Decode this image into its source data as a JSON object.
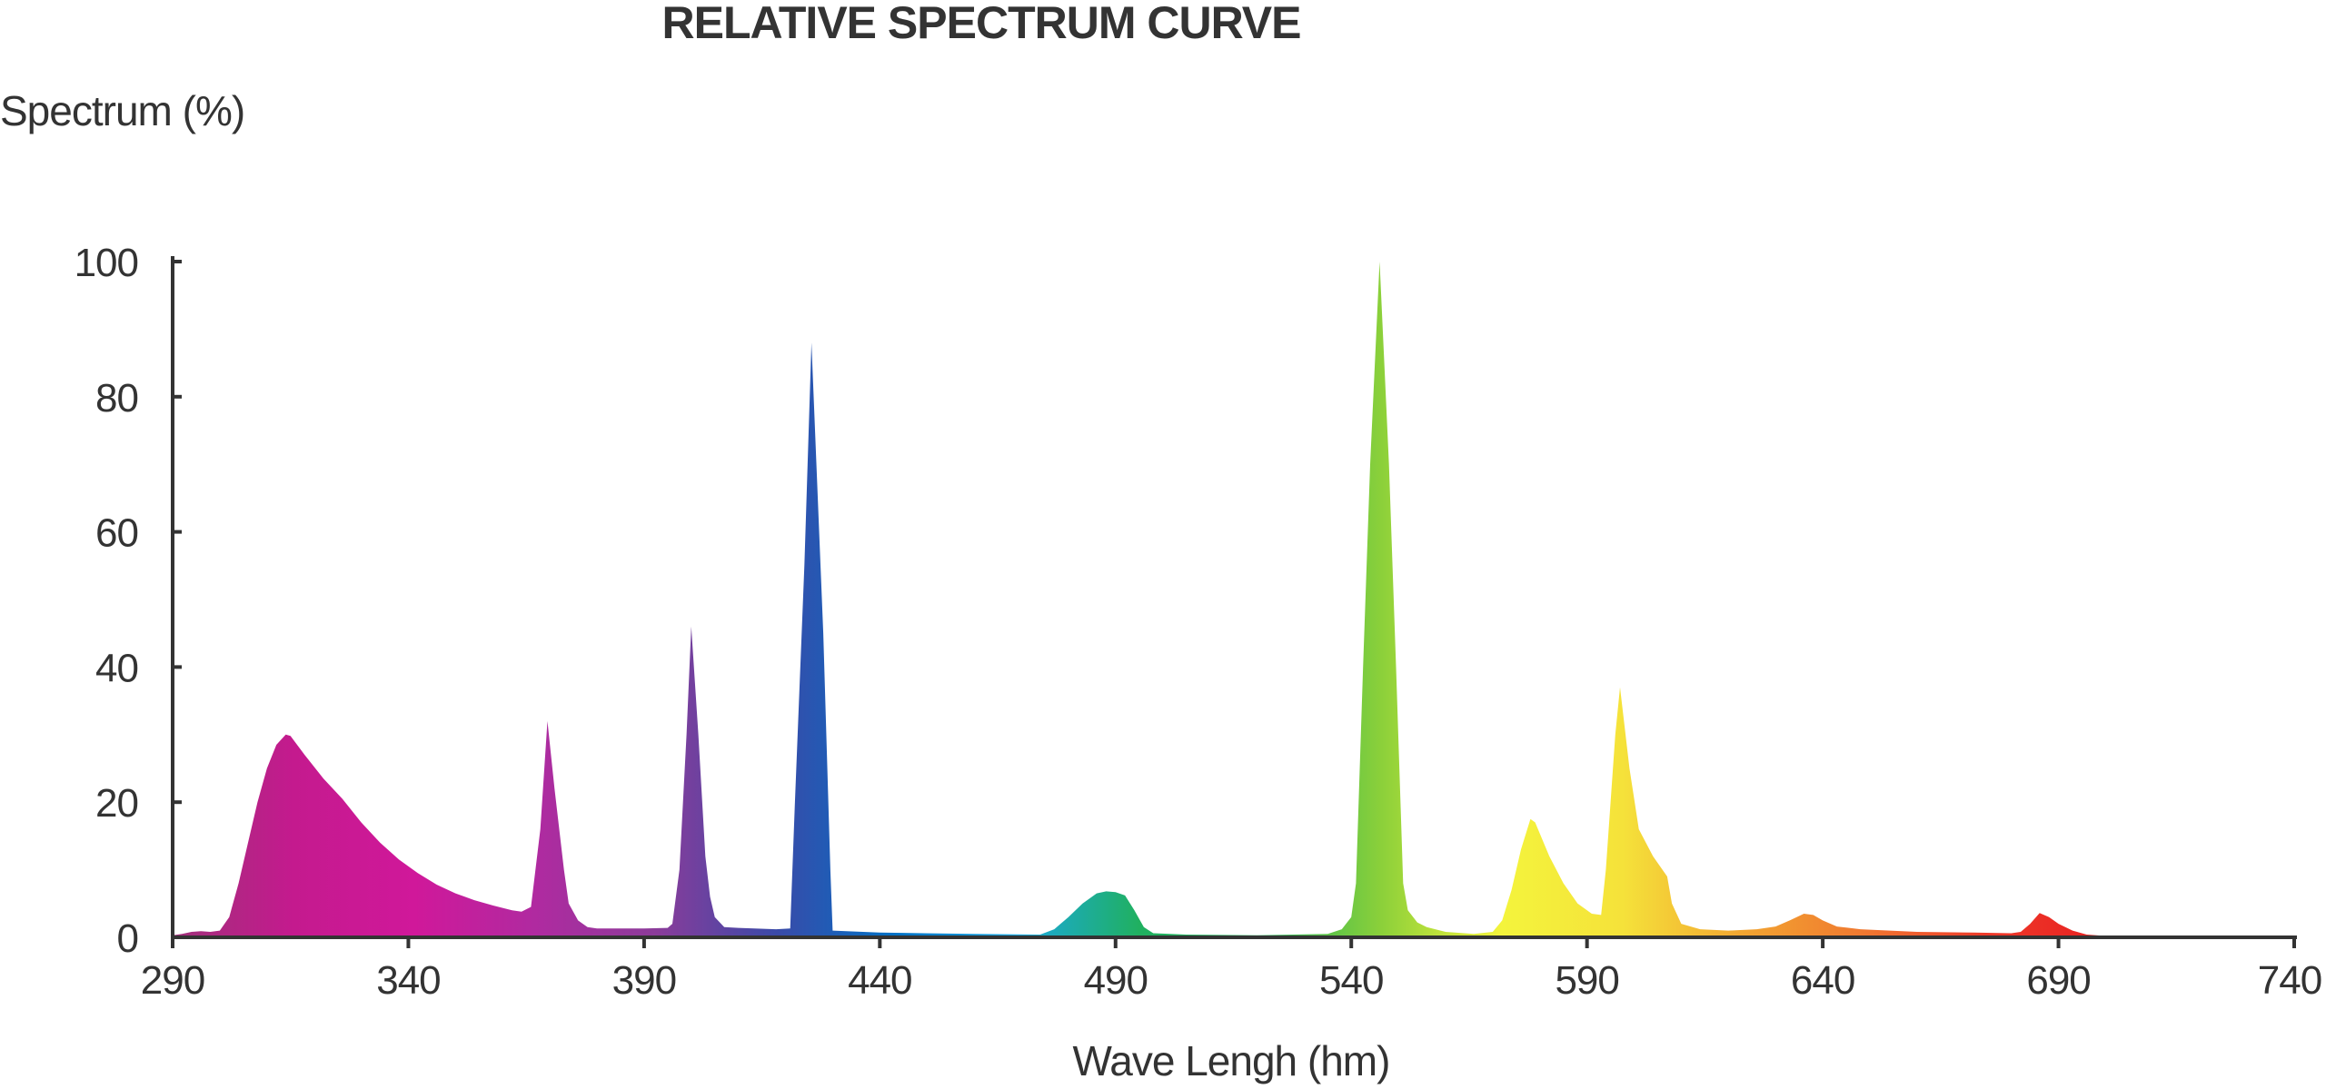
{
  "chart_data": {
    "type": "area",
    "title": "RELATIVE SPECTRUM CURVE",
    "ylabel": "Spectrum (%)",
    "xlabel": "Wave Lengh (hm)",
    "xlim": [
      290,
      740
    ],
    "ylim": [
      0,
      100
    ],
    "x_ticks": [
      290,
      340,
      390,
      440,
      490,
      540,
      590,
      640,
      690,
      740
    ],
    "y_ticks": [
      0,
      20,
      40,
      60,
      80,
      100
    ],
    "grid": false,
    "legend": "none",
    "gradient_colors": [
      "#a0307a",
      "#c41a8e",
      "#d0189a",
      "#b02aa0",
      "#8b3c9a",
      "#3a4aa8",
      "#0072c6",
      "#1aa8e0",
      "#20b060",
      "#22b35a",
      "#8bd03a",
      "#f4f43c",
      "#f5e23a",
      "#f2a531",
      "#f07830",
      "#ee3a2a",
      "#e82020"
    ],
    "series": [
      {
        "points": [
          [
            290,
            0.3
          ],
          [
            292,
            0.5
          ],
          [
            294,
            0.8
          ],
          [
            296,
            0.9
          ],
          [
            298,
            0.8
          ],
          [
            300,
            1.0
          ],
          [
            302,
            3
          ],
          [
            304,
            8
          ],
          [
            306,
            14
          ],
          [
            308,
            20
          ],
          [
            310,
            25
          ],
          [
            312,
            28.5
          ],
          [
            314,
            30
          ],
          [
            315,
            29.8
          ],
          [
            318,
            27
          ],
          [
            322,
            23.5
          ],
          [
            326,
            20.5
          ],
          [
            330,
            17
          ],
          [
            334,
            14
          ],
          [
            338,
            11.5
          ],
          [
            342,
            9.5
          ],
          [
            346,
            7.8
          ],
          [
            350,
            6.5
          ],
          [
            354,
            5.5
          ],
          [
            358,
            4.7
          ],
          [
            362,
            4.0
          ],
          [
            364,
            3.8
          ],
          [
            366,
            4.5
          ],
          [
            368,
            16
          ],
          [
            369.5,
            32
          ],
          [
            371,
            22
          ],
          [
            373,
            10
          ],
          [
            374,
            5
          ],
          [
            376,
            2.5
          ],
          [
            378,
            1.5
          ],
          [
            380,
            1.3
          ],
          [
            390,
            1.3
          ],
          [
            395,
            1.4
          ],
          [
            396,
            2
          ],
          [
            397.5,
            10
          ],
          [
            399,
            30
          ],
          [
            400,
            46
          ],
          [
            401.5,
            30
          ],
          [
            403,
            12
          ],
          [
            404,
            6
          ],
          [
            405,
            3
          ],
          [
            407,
            1.5
          ],
          [
            410,
            1.4
          ],
          [
            418,
            1.2
          ],
          [
            421,
            1.3
          ],
          [
            422,
            20
          ],
          [
            424,
            55
          ],
          [
            425.5,
            88
          ],
          [
            428,
            45
          ],
          [
            429.5,
            10
          ],
          [
            430,
            1
          ],
          [
            440,
            0.7
          ],
          [
            460,
            0.5
          ],
          [
            474,
            0.4
          ],
          [
            477,
            1.2
          ],
          [
            480,
            3
          ],
          [
            483,
            5
          ],
          [
            486,
            6.5
          ],
          [
            488,
            6.8
          ],
          [
            490,
            6.7
          ],
          [
            492,
            6.2
          ],
          [
            494,
            4
          ],
          [
            496,
            1.5
          ],
          [
            498,
            0.6
          ],
          [
            505,
            0.4
          ],
          [
            520,
            0.3
          ],
          [
            535,
            0.5
          ],
          [
            538,
            1.2
          ],
          [
            540,
            3
          ],
          [
            541,
            8
          ],
          [
            542.5,
            40
          ],
          [
            544,
            70
          ],
          [
            546,
            100
          ],
          [
            548,
            70
          ],
          [
            549.5,
            40
          ],
          [
            551,
            8
          ],
          [
            552,
            4
          ],
          [
            554,
            2.2
          ],
          [
            556,
            1.5
          ],
          [
            560,
            0.8
          ],
          [
            566,
            0.5
          ],
          [
            570,
            0.8
          ],
          [
            572,
            2.5
          ],
          [
            574,
            7
          ],
          [
            576,
            13
          ],
          [
            578,
            17.5
          ],
          [
            579,
            17
          ],
          [
            582,
            12
          ],
          [
            585,
            8
          ],
          [
            588,
            5
          ],
          [
            591,
            3.5
          ],
          [
            593,
            3.3
          ],
          [
            594,
            10
          ],
          [
            596,
            30
          ],
          [
            597,
            37
          ],
          [
            599,
            25
          ],
          [
            601,
            16
          ],
          [
            604,
            12
          ],
          [
            607,
            9
          ],
          [
            608,
            5
          ],
          [
            610,
            2
          ],
          [
            614,
            1.2
          ],
          [
            620,
            1
          ],
          [
            626,
            1.2
          ],
          [
            630,
            1.6
          ],
          [
            633,
            2.5
          ],
          [
            636,
            3.5
          ],
          [
            638,
            3.3
          ],
          [
            640,
            2.5
          ],
          [
            643,
            1.6
          ],
          [
            648,
            1.2
          ],
          [
            660,
            0.8
          ],
          [
            672,
            0.7
          ],
          [
            680,
            0.6
          ],
          [
            682,
            0.8
          ],
          [
            684,
            2
          ],
          [
            686,
            3.6
          ],
          [
            688,
            3
          ],
          [
            690,
            2
          ],
          [
            693,
            1
          ],
          [
            696,
            0.4
          ],
          [
            700,
            0.2
          ]
        ]
      }
    ]
  }
}
